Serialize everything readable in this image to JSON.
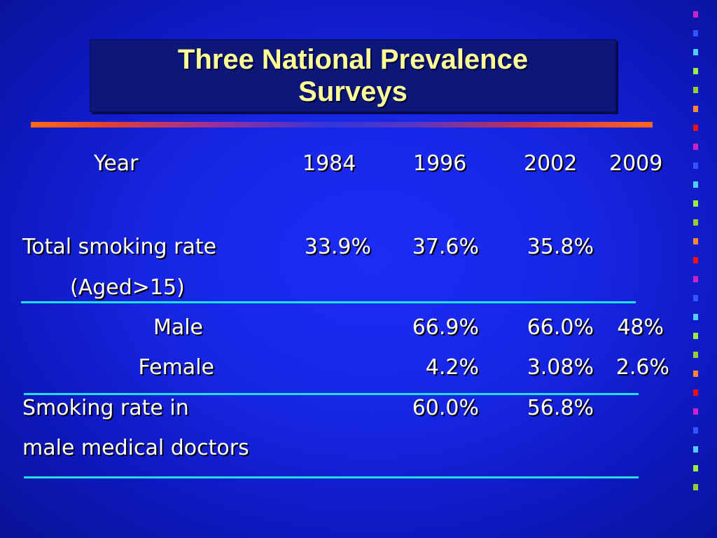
{
  "title": {
    "line1": "Three National Prevalence",
    "line2": "Surveys"
  },
  "table": {
    "header": {
      "label": "Year",
      "years": [
        "1984",
        "1996",
        "2002",
        "2009"
      ]
    },
    "total": {
      "label": "Total smoking rate",
      "sublabel": "(Aged>15)",
      "values": [
        "33.9%",
        "37.6%",
        "35.8%",
        ""
      ]
    },
    "male": {
      "label": "Male",
      "values": [
        "",
        "66.9%",
        "66.0%",
        "48%"
      ]
    },
    "female": {
      "label": "Female",
      "values": [
        "",
        "4.2%",
        "3.08%",
        "2.6%"
      ]
    },
    "doctors": {
      "label_line1": "Smoking rate in",
      "label_line2": "male medical doctors",
      "values": [
        "",
        "60.0%",
        "56.8%",
        ""
      ]
    }
  },
  "colors": {
    "background": "#1726e4",
    "title_text": "#ffff99",
    "title_box": "#0d1778",
    "divider": "#20e0f0"
  },
  "decor_square_colors": [
    "#cc22cc",
    "#3355ff",
    "#55ccff",
    "#99ee44",
    "#99cc33",
    "#ff8833",
    "#ee1111",
    "#cc22cc",
    "#3355ff",
    "#55ccff",
    "#99ee44",
    "#99cc33",
    "#ff8833",
    "#ee1111",
    "#cc22cc",
    "#3355ff",
    "#55ccff",
    "#99ee44",
    "#99cc33",
    "#ff8833",
    "#ee1111",
    "#cc22cc",
    "#3355ff",
    "#55ccff",
    "#99ee44",
    "#99cc33"
  ]
}
